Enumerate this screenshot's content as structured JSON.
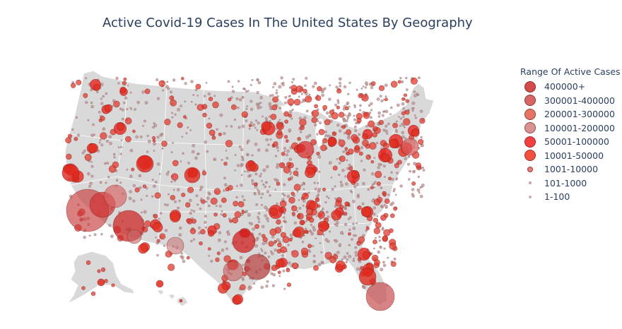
{
  "title": "Active Covid-19 Cases In The United States By Geography",
  "legend": {
    "title": "Range Of Active Cases",
    "items": [
      {
        "label": "400000+",
        "color": "#c81e1e",
        "opacity": 0.8,
        "size": 5
      },
      {
        "label": "300001-400000",
        "color": "#c83232",
        "opacity": 0.75,
        "size": 5
      },
      {
        "label": "200001-300000",
        "color": "#dc4632",
        "opacity": 0.75,
        "size": 5
      },
      {
        "label": "100001-200000",
        "color": "#c86464",
        "opacity": 0.7,
        "size": 5
      },
      {
        "label": "50001-100000",
        "color": "#f01e1e",
        "opacity": 0.85,
        "size": 5
      },
      {
        "label": "10001-50000",
        "color": "#f0321e",
        "opacity": 0.85,
        "size": 5
      },
      {
        "label": "1001-10000",
        "color": "#e65a50",
        "opacity": 0.8,
        "size": 3
      },
      {
        "label": "101-1000",
        "color": "#b48c8c",
        "opacity": 0.8,
        "size": 2
      },
      {
        "label": "1-100",
        "color": "#aa8c8c",
        "opacity": 0.7,
        "size": 2
      }
    ]
  },
  "map_colors": {
    "land": "#d9d9d9",
    "border": "#ffffff",
    "background": "#ffffff"
  }
}
